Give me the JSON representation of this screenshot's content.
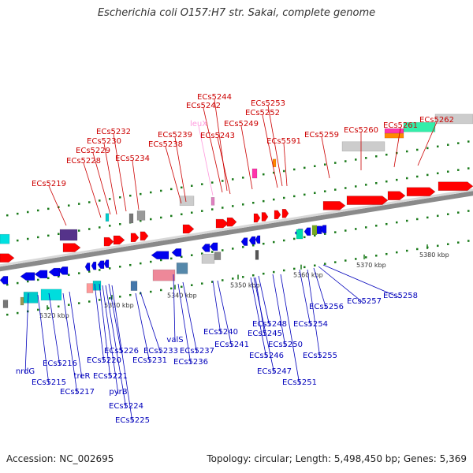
{
  "title": "Escherichia coli O157:H7 str. Sakai, complete genome",
  "footer": {
    "accession": "Accession: NC_002695",
    "summary": "Topology: circular; Length: 5,498,450 bp; Genes: 5,369"
  },
  "scale_labels": [
    "5320 kbp",
    "5330 kbp",
    "5340 kbp",
    "5350 kbp",
    "5360 kbp",
    "5370 kbp",
    "5380 kbp"
  ],
  "colors": {
    "forward": "#ff0000",
    "reverse": "#0000ee",
    "rna": "#e080c0",
    "backbone": "#999999"
  },
  "top_labels": [
    "ECs5244",
    "ECs5242",
    "ECs5253",
    "ECs5252",
    "leuX",
    "ECs5249",
    "ECs5232",
    "ECs5243",
    "ECs5239",
    "ECs5230",
    "ECs5238",
    "ECs5591",
    "ECs5259",
    "ECs5260",
    "ECs5261",
    "ECs5262",
    "ECs5229",
    "ECs5228",
    "ECs5234",
    "ECs5219"
  ],
  "bottom_labels": [
    "ECs5258",
    "ECs5257",
    "ECs5256",
    "valS",
    "ECs5240",
    "ECs5248",
    "ECs5254",
    "ECs5245",
    "ECs5226",
    "ECs5233",
    "ECs5237",
    "ECs5241",
    "ECs5250",
    "ECs5216",
    "treR",
    "ECs5220",
    "ECs5231",
    "ECs5236",
    "ECs5246",
    "ECs5255",
    "nrdG",
    "ECs5221",
    "ECs5247",
    "ECs5215",
    "ECs5251",
    "ECs5217",
    "pyrB",
    "ECs5224",
    "ECs5225"
  ]
}
